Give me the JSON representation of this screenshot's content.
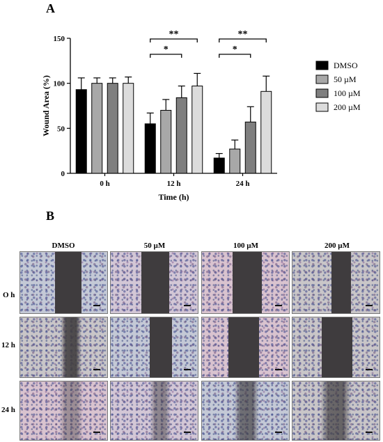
{
  "panel_a_label": "A",
  "panel_b_label": "B",
  "chart_data": {
    "type": "bar",
    "categories": [
      "0 h",
      "12 h",
      "24 h"
    ],
    "series": [
      {
        "name": "DMSO",
        "color": "#000000",
        "values": [
          93,
          55,
          17
        ],
        "errors": [
          13,
          12,
          5
        ]
      },
      {
        "name": "50 µM",
        "color": "#a8a8a8",
        "values": [
          100,
          70,
          27
        ],
        "errors": [
          6,
          12,
          10
        ]
      },
      {
        "name": "100 µM",
        "color": "#7f7f7f",
        "values": [
          100,
          84,
          57
        ],
        "errors": [
          6,
          13,
          17
        ]
      },
      {
        "name": "200 µM",
        "color": "#dcdcdc",
        "values": [
          100,
          97,
          91
        ],
        "errors": [
          7,
          14,
          17
        ]
      }
    ],
    "xlabel": "Time (h)",
    "ylabel": "Wound Area (%)",
    "ylim": [
      0,
      150
    ],
    "yticks": [
      0,
      50,
      100,
      150
    ],
    "legend_position": "right",
    "significance": [
      {
        "group": 1,
        "from": 0,
        "to": 2,
        "label": "*"
      },
      {
        "group": 1,
        "from": 0,
        "to": 3,
        "label": "**"
      },
      {
        "group": 2,
        "from": 0,
        "to": 2,
        "label": "*"
      },
      {
        "group": 2,
        "from": 0,
        "to": 3,
        "label": "**"
      }
    ]
  },
  "panel_b": {
    "columns": [
      "DMSO",
      "50 µM",
      "100 µM",
      "200 µM"
    ],
    "rows": [
      "O h",
      "12 h",
      "24 h"
    ]
  }
}
